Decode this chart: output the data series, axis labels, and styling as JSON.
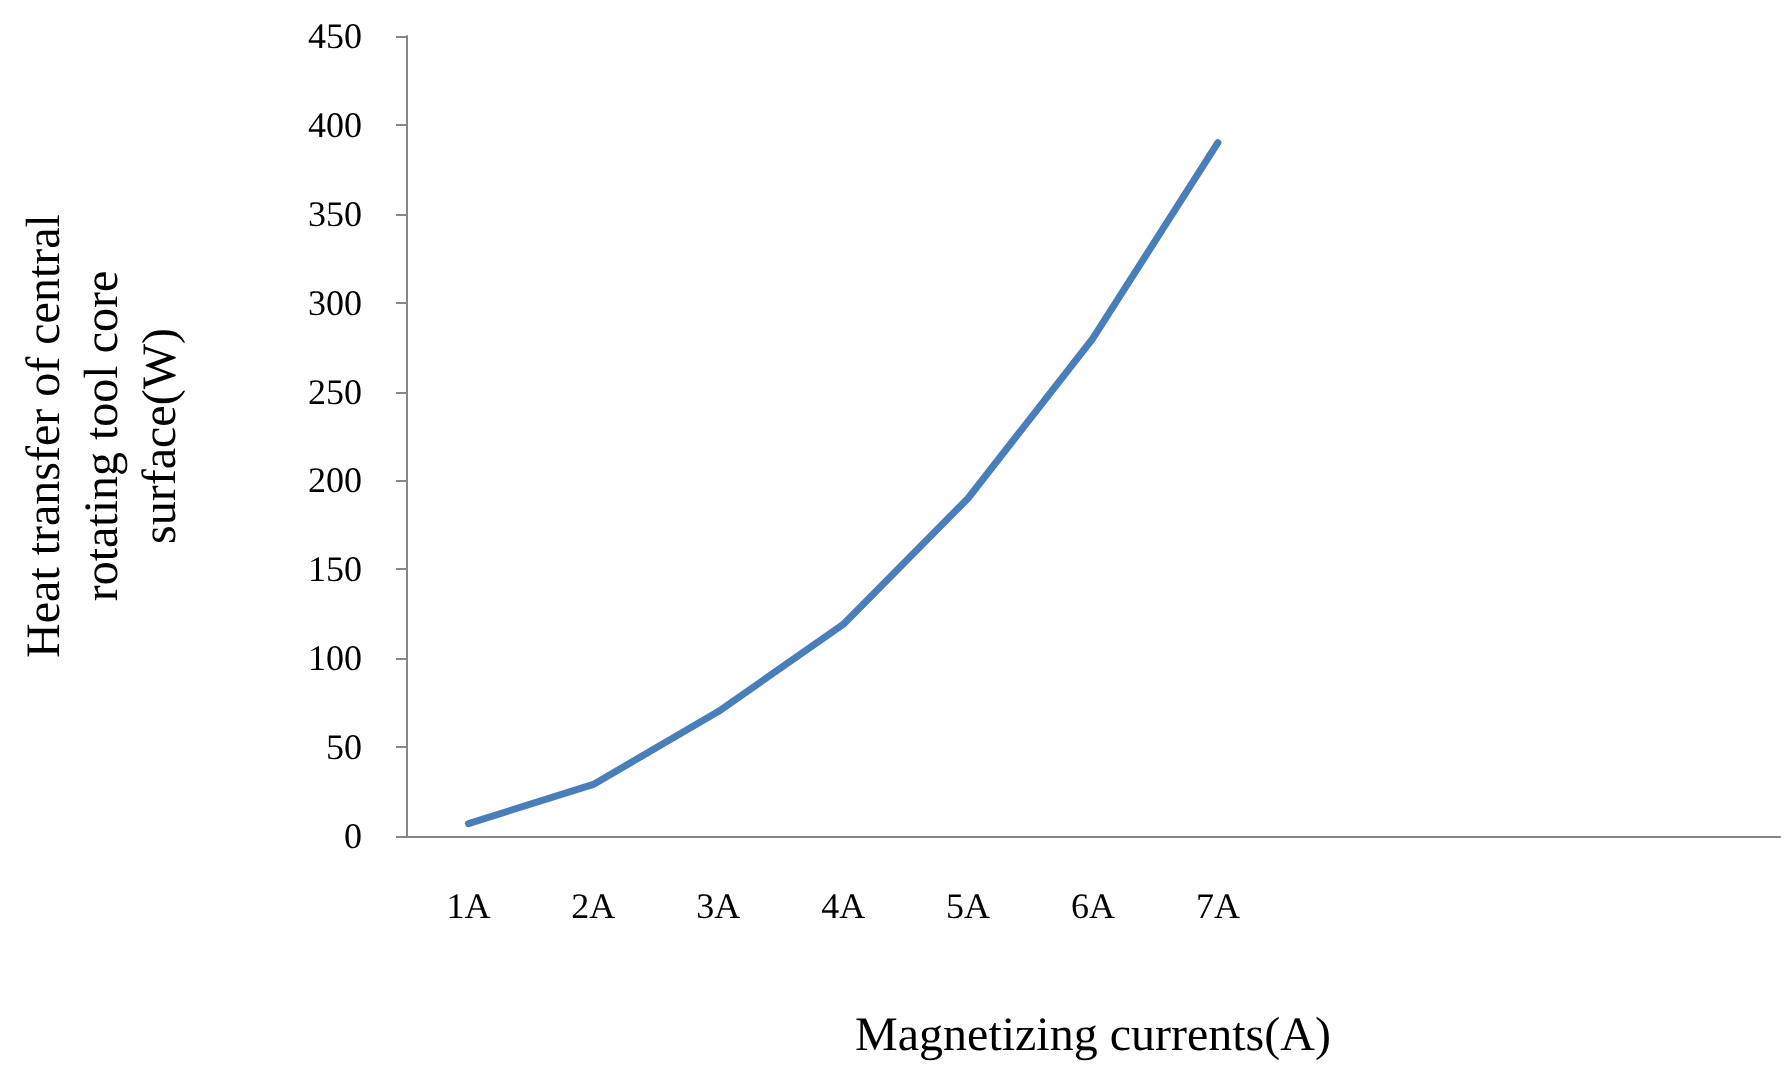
{
  "chart_data": {
    "type": "line",
    "xlabel": "Magnetizing currents(A)",
    "ylabel": "Heat transfer of central rotating tool core surface(W)",
    "categories": [
      "1A",
      "2A",
      "3A",
      "4A",
      "5A",
      "6A",
      "7A",
      null,
      null,
      null,
      null
    ],
    "series": [
      {
        "color": "#4a7ebb",
        "values": [
          7,
          29,
          70,
          119,
          190,
          280,
          390,
          null,
          null,
          null,
          null
        ]
      }
    ],
    "ylim": [
      0,
      450
    ],
    "yticks": [
      0,
      50,
      100,
      150,
      200,
      250,
      300,
      350,
      400,
      450
    ],
    "grid": false,
    "marker": "none",
    "line_style": "solid"
  }
}
